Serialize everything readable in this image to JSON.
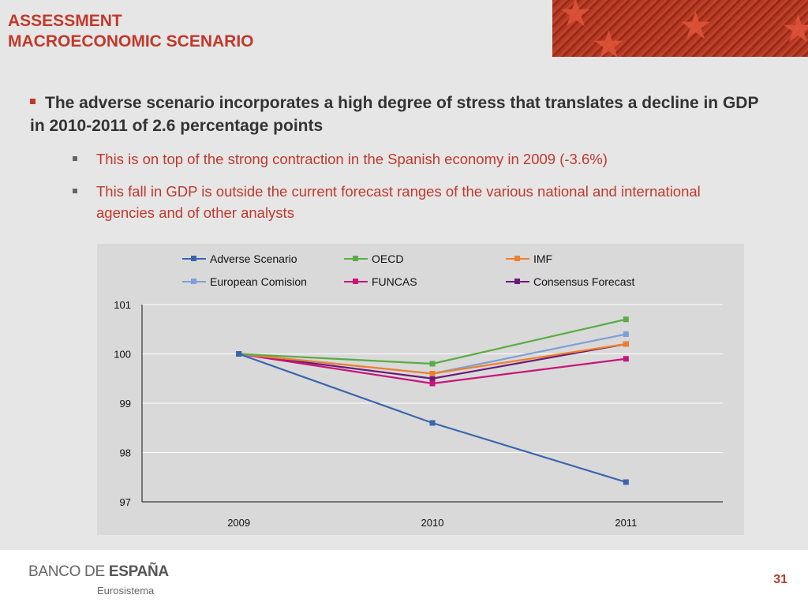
{
  "header": {
    "title_line1": "ASSESSMENT",
    "title_line2": "MACROECONOMIC SCENARIO"
  },
  "content": {
    "main_bullet": "The adverse scenario incorporates a high degree of stress that translates a decline in GDP in 2010-2011 of 2.6 percentage points",
    "sub_bullets": [
      "This is on top of the strong contraction in the Spanish economy in 2009 (-3.6%)",
      "This fall in GDP is outside the current forecast ranges of the various national and international agencies and of other analysts"
    ]
  },
  "chart_data": {
    "type": "line",
    "title": "",
    "xlabel": "",
    "ylabel": "",
    "categories": [
      "2009",
      "2010",
      "2011"
    ],
    "ylim": [
      97,
      101
    ],
    "yticks": [
      "101",
      "100",
      "99",
      "98",
      "97"
    ],
    "grid": true,
    "legend_position": "top",
    "series": [
      {
        "name": "Adverse Scenario",
        "color": "#3a65ad",
        "values": [
          100,
          98.6,
          97.4
        ]
      },
      {
        "name": "OECD",
        "color": "#5aac44",
        "values": [
          100,
          99.8,
          100.7
        ]
      },
      {
        "name": "IMF",
        "color": "#f07f2d",
        "values": [
          100,
          99.6,
          100.2
        ]
      },
      {
        "name": "European Comision",
        "color": "#7f9fd6",
        "values": [
          100,
          99.6,
          100.4
        ]
      },
      {
        "name": "FUNCAS",
        "color": "#c7157a",
        "values": [
          100,
          99.4,
          99.9
        ]
      },
      {
        "name": "Consensus Forecast",
        "color": "#6a1a7a",
        "values": [
          100,
          99.5,
          100.2
        ]
      }
    ]
  },
  "footer": {
    "logo_prefix": "BANCO DE ",
    "logo_bold": "ESPAÑA",
    "logo_sub": "Eurosistema",
    "page_number": "31"
  }
}
